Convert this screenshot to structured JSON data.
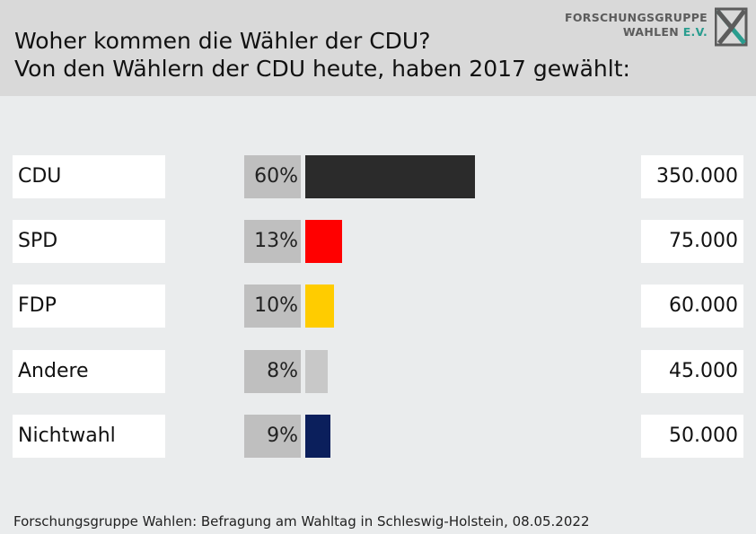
{
  "header": {
    "title_line1": "Woher kommen die Wähler der CDU?",
    "title_line2": "Von den Wählern der CDU heute, haben 2017 gewählt:"
  },
  "logo": {
    "line1": "FORSCHUNGSGRUPPE",
    "line2_main": "WAHLEN",
    "line2_accent": "E.V."
  },
  "footer": {
    "source": "Forschungsgruppe Wahlen: Befragung am Wahltag in Schleswig-Holstein, 08.05.2022"
  },
  "chart_data": {
    "type": "bar",
    "orientation": "horizontal",
    "title": "Woher kommen die Wähler der CDU?",
    "subtitle": "Von den Wählern der CDU heute, haben 2017 gewählt:",
    "categories": [
      "CDU",
      "SPD",
      "FDP",
      "Andere",
      "Nichtwahl"
    ],
    "values": [
      60,
      13,
      10,
      8,
      9
    ],
    "value_labels": [
      "60%",
      "13%",
      "10%",
      "8%",
      "9%"
    ],
    "counts": [
      "350.000",
      "75.000",
      "60.000",
      "45.000",
      "50.000"
    ],
    "colors": [
      "#2b2b2b",
      "#ff0000",
      "#ffcc00",
      "#c8c8c8",
      "#0b1f5c"
    ],
    "unit": "%"
  }
}
